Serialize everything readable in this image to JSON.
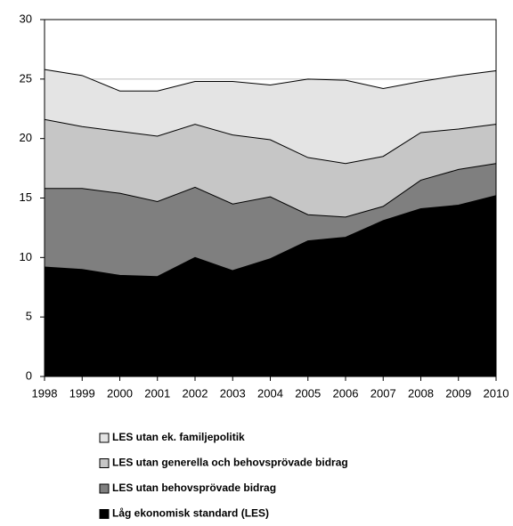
{
  "chart_data": {
    "type": "area",
    "categories": [
      "1998",
      "1999",
      "2000",
      "2001",
      "2002",
      "2003",
      "2004",
      "2005",
      "2006",
      "2007",
      "2008",
      "2009",
      "2010"
    ],
    "series": [
      {
        "name": "LES utan ek. familjepolitik",
        "color": "#e4e4e4",
        "values": [
          25.8,
          25.3,
          24.0,
          24.0,
          24.8,
          24.8,
          24.5,
          25.0,
          24.9,
          24.2,
          24.8,
          25.3,
          25.7
        ]
      },
      {
        "name": "LES utan generella och behovsprövade bidrag",
        "color": "#c6c6c6",
        "values": [
          21.6,
          21.0,
          20.6,
          20.2,
          21.2,
          20.3,
          19.9,
          18.4,
          17.9,
          18.5,
          20.5,
          20.8,
          21.2
        ]
      },
      {
        "name": "LES utan behovsprövade bidrag",
        "color": "#7f7f7f",
        "values": [
          15.8,
          15.8,
          15.4,
          14.7,
          15.9,
          14.5,
          15.1,
          13.6,
          13.4,
          14.3,
          16.5,
          17.4,
          17.9
        ]
      },
      {
        "name": "Låg ekonomisk standard (LES)",
        "color": "#000000",
        "values": [
          9.2,
          9.0,
          8.5,
          8.4,
          10.0,
          8.9,
          9.9,
          11.4,
          11.7,
          13.1,
          14.1,
          14.4,
          15.2
        ]
      }
    ],
    "ylim": [
      0,
      30
    ],
    "yticks": [
      0,
      5,
      10,
      15,
      20,
      25,
      30
    ],
    "grid": true
  }
}
